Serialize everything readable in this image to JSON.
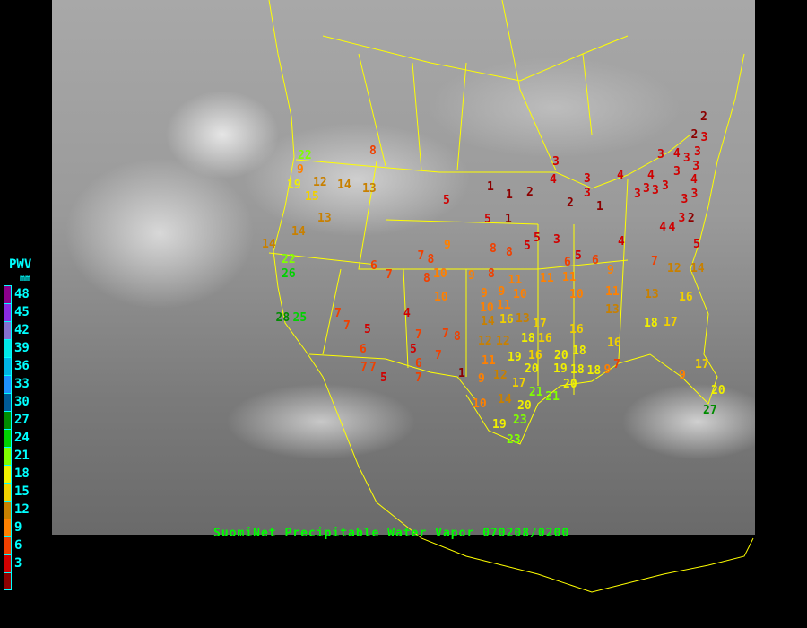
{
  "title": "SuomiNet Precipitable Water Vapor 070208/0200",
  "legend": {
    "title": "PWV",
    "unit": "mm",
    "bins": [
      {
        "label": "48",
        "color": "#8b008b"
      },
      {
        "label": "45",
        "color": "#8a2be2"
      },
      {
        "label": "42",
        "color": "#8470d0"
      },
      {
        "label": "39",
        "color": "#00e8e8"
      },
      {
        "label": "36",
        "color": "#00b4e6"
      },
      {
        "label": "33",
        "color": "#1e90ff"
      },
      {
        "label": "30",
        "color": "#005a96"
      },
      {
        "label": "27",
        "color": "#008c00"
      },
      {
        "label": "24",
        "color": "#00d200"
      },
      {
        "label": "21",
        "color": "#80ff00"
      },
      {
        "label": "18",
        "color": "#f0f000"
      },
      {
        "label": "15",
        "color": "#f0d000"
      },
      {
        "label": "12",
        "color": "#c88000"
      },
      {
        "label": "9",
        "color": "#ff8000"
      },
      {
        "label": "6",
        "color": "#f04000"
      },
      {
        "label": "3",
        "color": "#d00000"
      },
      {
        "label": "",
        "color": "#8b0000"
      }
    ]
  },
  "stations": [
    22,
    9,
    19,
    12,
    15,
    14,
    13,
    8,
    13,
    14,
    14,
    22,
    26,
    28,
    25,
    6,
    7,
    7,
    8,
    10,
    8,
    10,
    5,
    9,
    9,
    4,
    7,
    7,
    5,
    6,
    7,
    5,
    7,
    8,
    7,
    7,
    7,
    5,
    6,
    7,
    1,
    8,
    11,
    9,
    9,
    10,
    10,
    11,
    12,
    12,
    14,
    16,
    13,
    17,
    18,
    16,
    19,
    16,
    20,
    11,
    9,
    12,
    17,
    21,
    21,
    20,
    14,
    10,
    19,
    23,
    23,
    11,
    11,
    10,
    11,
    9,
    6,
    6,
    5,
    16,
    16,
    18,
    20,
    19,
    20,
    18,
    18,
    9,
    7,
    13,
    13,
    16,
    18,
    17,
    12,
    14,
    7,
    8,
    8,
    5,
    5,
    3,
    4,
    5,
    1,
    1,
    1,
    2,
    3,
    4,
    3,
    3,
    2,
    1,
    4,
    3,
    4,
    3,
    3,
    3,
    3,
    4,
    3,
    3,
    3,
    3,
    4,
    3,
    3,
    3,
    2,
    4,
    4,
    5,
    2,
    2,
    3,
    9,
    17,
    20,
    27
  ]
}
